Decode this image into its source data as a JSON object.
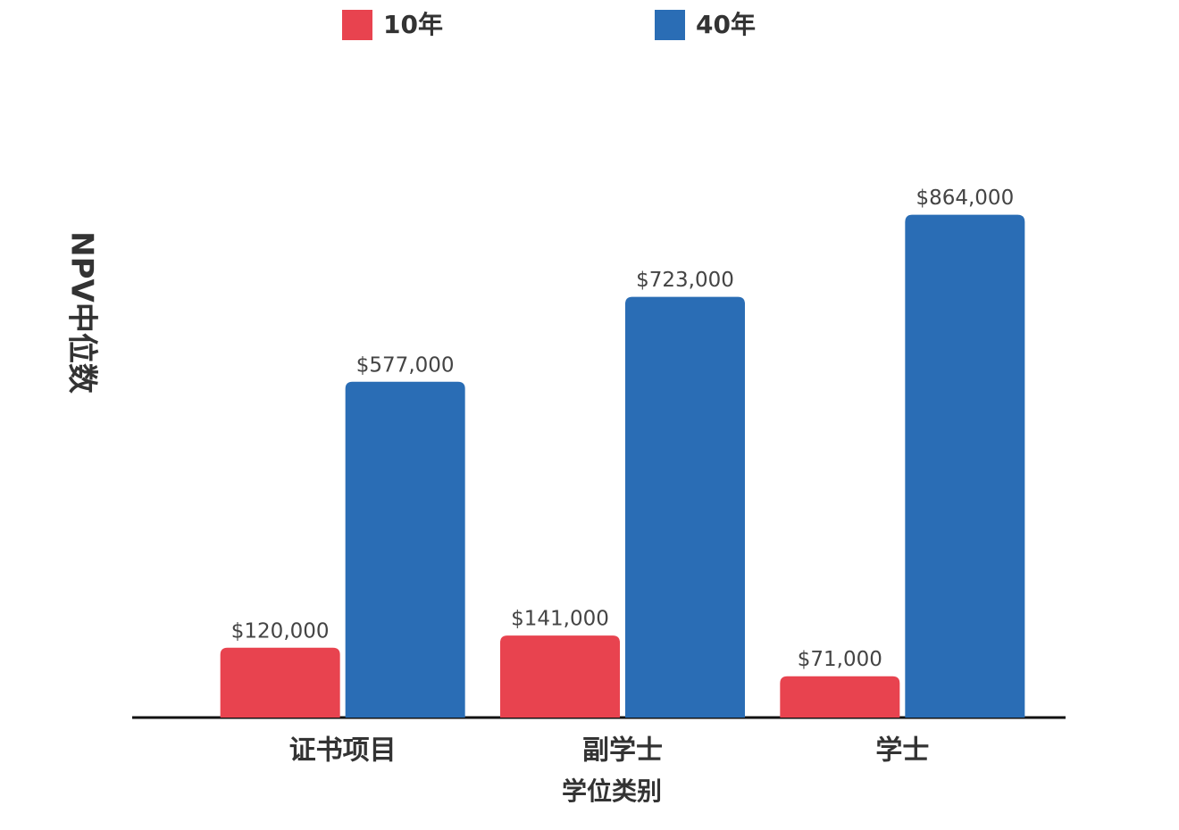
{
  "chart_data": {
    "type": "bar",
    "x_label": "学位类别",
    "y_label": "NPV中位数",
    "categories": [
      "证书项目",
      "副学士",
      "学士"
    ],
    "series": [
      {
        "name": "10年",
        "color": "#e8434f",
        "values": [
          120000,
          141000,
          71000
        ],
        "value_labels": [
          "$120,000",
          "$141,000",
          "$71,000"
        ]
      },
      {
        "name": "40年",
        "color": "#2a6db5",
        "values": [
          577000,
          723000,
          864000
        ],
        "value_labels": [
          "$577,000",
          "$723,000",
          "$864,000"
        ]
      }
    ],
    "ylim": [
      0,
      1000000
    ],
    "grid": false
  }
}
